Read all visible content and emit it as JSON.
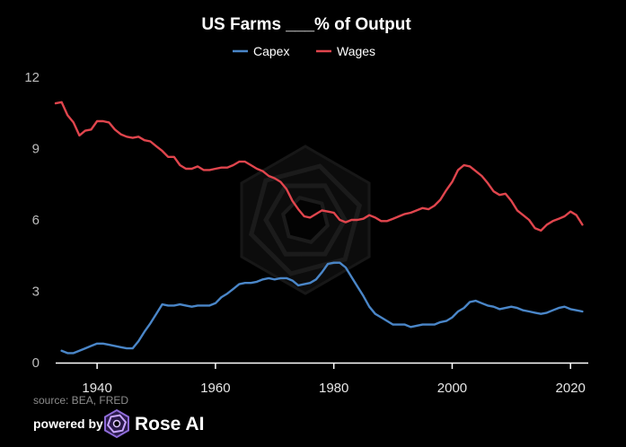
{
  "chart_data": {
    "type": "line",
    "title": "US Farms ___% of Output",
    "xlabel": "",
    "ylabel": "",
    "xlim": [
      1933,
      2023
    ],
    "ylim": [
      0,
      12
    ],
    "x_ticks": [
      1940,
      1960,
      1980,
      2000,
      2020
    ],
    "y_ticks": [
      0,
      3,
      6,
      9,
      12
    ],
    "grid": false,
    "legend_position": "top-center",
    "series": [
      {
        "name": "Capex",
        "color": "#4a86c8",
        "x": [
          1934,
          1935,
          1936,
          1937,
          1938,
          1939,
          1940,
          1941,
          1942,
          1943,
          1944,
          1945,
          1946,
          1947,
          1948,
          1949,
          1950,
          1951,
          1952,
          1953,
          1954,
          1955,
          1956,
          1957,
          1958,
          1959,
          1960,
          1961,
          1962,
          1963,
          1964,
          1965,
          1966,
          1967,
          1968,
          1969,
          1970,
          1971,
          1972,
          1973,
          1974,
          1975,
          1976,
          1977,
          1978,
          1979,
          1980,
          1981,
          1982,
          1983,
          1984,
          1985,
          1986,
          1987,
          1988,
          1989,
          1990,
          1991,
          1992,
          1993,
          1994,
          1995,
          1996,
          1997,
          1998,
          1999,
          2000,
          2001,
          2002,
          2003,
          2004,
          2005,
          2006,
          2007,
          2008,
          2009,
          2010,
          2011,
          2012,
          2013,
          2014,
          2015,
          2016,
          2017,
          2018,
          2019,
          2020,
          2021,
          2022
        ],
        "values": [
          0.5,
          0.4,
          0.4,
          0.5,
          0.6,
          0.7,
          0.8,
          0.8,
          0.75,
          0.7,
          0.65,
          0.6,
          0.6,
          0.9,
          1.3,
          1.65,
          2.05,
          2.45,
          2.4,
          2.4,
          2.45,
          2.4,
          2.35,
          2.4,
          2.4,
          2.4,
          2.5,
          2.75,
          2.9,
          3.1,
          3.3,
          3.35,
          3.35,
          3.4,
          3.5,
          3.55,
          3.5,
          3.55,
          3.55,
          3.45,
          3.25,
          3.3,
          3.35,
          3.5,
          3.8,
          4.15,
          4.2,
          4.2,
          4.0,
          3.6,
          3.2,
          2.8,
          2.35,
          2.05,
          1.9,
          1.75,
          1.6,
          1.6,
          1.6,
          1.5,
          1.55,
          1.6,
          1.6,
          1.6,
          1.7,
          1.75,
          1.9,
          2.15,
          2.3,
          2.55,
          2.6,
          2.5,
          2.4,
          2.35,
          2.25,
          2.3,
          2.35,
          2.3,
          2.2,
          2.15,
          2.1,
          2.05,
          2.1,
          2.2,
          2.3,
          2.35,
          2.25,
          2.2,
          2.15
        ]
      },
      {
        "name": "Wages",
        "color": "#e0454d",
        "x": [
          1933,
          1934,
          1935,
          1936,
          1937,
          1938,
          1939,
          1940,
          1941,
          1942,
          1943,
          1944,
          1945,
          1946,
          1947,
          1948,
          1949,
          1950,
          1951,
          1952,
          1953,
          1954,
          1955,
          1956,
          1957,
          1958,
          1959,
          1960,
          1961,
          1962,
          1963,
          1964,
          1965,
          1966,
          1967,
          1968,
          1969,
          1970,
          1971,
          1972,
          1973,
          1974,
          1975,
          1976,
          1977,
          1978,
          1979,
          1980,
          1981,
          1982,
          1983,
          1984,
          1985,
          1986,
          1987,
          1988,
          1989,
          1990,
          1991,
          1992,
          1993,
          1994,
          1995,
          1996,
          1997,
          1998,
          1999,
          2000,
          2001,
          2002,
          2003,
          2004,
          2005,
          2006,
          2007,
          2008,
          2009,
          2010,
          2011,
          2012,
          2013,
          2014,
          2015,
          2016,
          2017,
          2018,
          2019,
          2020,
          2021,
          2022
        ],
        "values": [
          10.9,
          10.95,
          10.4,
          10.1,
          9.55,
          9.75,
          9.8,
          10.15,
          10.15,
          10.1,
          9.8,
          9.6,
          9.5,
          9.45,
          9.5,
          9.35,
          9.3,
          9.1,
          8.9,
          8.65,
          8.65,
          8.3,
          8.15,
          8.15,
          8.25,
          8.1,
          8.1,
          8.15,
          8.2,
          8.2,
          8.3,
          8.45,
          8.45,
          8.3,
          8.15,
          8.05,
          7.85,
          7.75,
          7.6,
          7.3,
          6.8,
          6.45,
          6.15,
          6.1,
          6.25,
          6.4,
          6.35,
          6.3,
          6.0,
          5.9,
          6.0,
          6.0,
          6.05,
          6.2,
          6.1,
          5.95,
          5.95,
          6.05,
          6.15,
          6.25,
          6.3,
          6.4,
          6.5,
          6.45,
          6.6,
          6.85,
          7.25,
          7.6,
          8.1,
          8.3,
          8.25,
          8.05,
          7.85,
          7.55,
          7.2,
          7.05,
          7.1,
          6.8,
          6.4,
          6.2,
          6.0,
          5.65,
          5.55,
          5.8,
          5.95,
          6.05,
          6.15,
          6.35,
          6.2,
          5.8
        ]
      }
    ],
    "annotations": {
      "source": "source: BEA, FRED",
      "powered_by": "powered by",
      "brand": "Rose AI"
    }
  }
}
